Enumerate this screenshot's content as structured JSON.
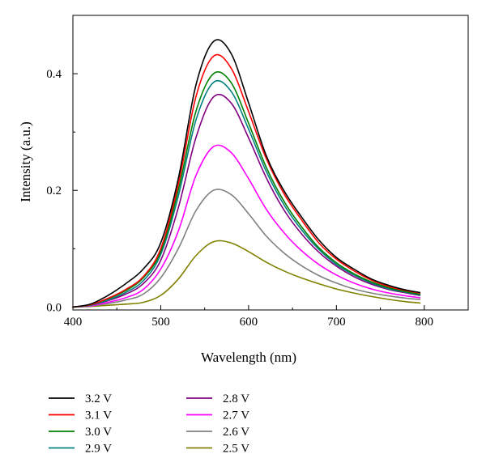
{
  "chart_data": {
    "type": "line",
    "title": "",
    "xlabel": "Wavelength (nm)",
    "ylabel": "Intensity (a.u.)",
    "xlim": [
      400,
      850
    ],
    "ylim": [
      -0.005,
      0.5
    ],
    "xticks": [
      400,
      500,
      600,
      700,
      800
    ],
    "xtick_labels": [
      "400",
      "500",
      "600",
      "700",
      "800"
    ],
    "yticks": [
      0.0,
      0.2,
      0.4
    ],
    "ytick_labels": [
      "0.0",
      "0.2",
      "0.4"
    ],
    "grid": false,
    "legend_position": "bottom, below plot, two columns",
    "x": [
      400,
      420,
      440,
      460,
      480,
      500,
      520,
      540,
      560,
      580,
      600,
      620,
      640,
      660,
      680,
      700,
      720,
      740,
      760,
      780,
      795
    ],
    "series": [
      {
        "name": "3.2 V",
        "color": "#000000",
        "values": [
          0.0,
          0.005,
          0.02,
          0.04,
          0.065,
          0.11,
          0.22,
          0.38,
          0.455,
          0.435,
          0.35,
          0.26,
          0.2,
          0.155,
          0.115,
          0.085,
          0.065,
          0.048,
          0.037,
          0.029,
          0.025
        ]
      },
      {
        "name": "3.1 V",
        "color": "#ff0000",
        "values": [
          0.0,
          0.004,
          0.015,
          0.03,
          0.052,
          0.1,
          0.21,
          0.36,
          0.43,
          0.41,
          0.335,
          0.255,
          0.195,
          0.15,
          0.11,
          0.082,
          0.062,
          0.046,
          0.035,
          0.028,
          0.024
        ]
      },
      {
        "name": "3.0 V",
        "color": "#008000",
        "values": [
          0.0,
          0.004,
          0.014,
          0.028,
          0.05,
          0.095,
          0.2,
          0.335,
          0.4,
          0.385,
          0.315,
          0.24,
          0.182,
          0.138,
          0.102,
          0.076,
          0.057,
          0.043,
          0.033,
          0.026,
          0.022
        ]
      },
      {
        "name": "2.9 V",
        "color": "#008080",
        "values": [
          0.0,
          0.003,
          0.012,
          0.025,
          0.045,
          0.09,
          0.19,
          0.32,
          0.385,
          0.37,
          0.305,
          0.233,
          0.176,
          0.133,
          0.099,
          0.073,
          0.055,
          0.041,
          0.031,
          0.025,
          0.021
        ]
      },
      {
        "name": "2.8 V",
        "color": "#800080",
        "values": [
          0.0,
          0.003,
          0.011,
          0.022,
          0.04,
          0.08,
          0.17,
          0.29,
          0.36,
          0.35,
          0.29,
          0.222,
          0.167,
          0.126,
          0.094,
          0.07,
          0.052,
          0.039,
          0.03,
          0.024,
          0.02
        ]
      },
      {
        "name": "2.7 V",
        "color": "#ff00ff",
        "values": [
          0.0,
          0.002,
          0.008,
          0.016,
          0.03,
          0.065,
          0.13,
          0.225,
          0.275,
          0.265,
          0.22,
          0.168,
          0.128,
          0.097,
          0.073,
          0.055,
          0.041,
          0.031,
          0.024,
          0.019,
          0.016
        ]
      },
      {
        "name": "2.6 V",
        "color": "#808080",
        "values": [
          0.0,
          0.002,
          0.006,
          0.012,
          0.022,
          0.05,
          0.1,
          0.165,
          0.2,
          0.193,
          0.16,
          0.122,
          0.093,
          0.071,
          0.054,
          0.041,
          0.031,
          0.024,
          0.019,
          0.015,
          0.013
        ]
      },
      {
        "name": "2.5 V",
        "color": "#808000",
        "values": [
          0.0,
          0.001,
          0.003,
          0.005,
          0.008,
          0.02,
          0.048,
          0.088,
          0.112,
          0.11,
          0.095,
          0.077,
          0.062,
          0.05,
          0.04,
          0.031,
          0.024,
          0.018,
          0.013,
          0.009,
          0.007
        ]
      }
    ]
  }
}
